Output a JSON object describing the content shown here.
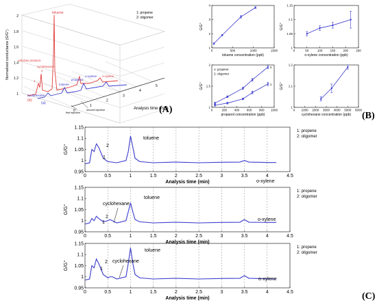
{
  "panel_labels": {
    "a": "(A)",
    "b": "(B)",
    "c": "(C)"
  },
  "colors": {
    "blue": "#3a3acd",
    "red": "#e03a3a",
    "grid": "#c8c8c8",
    "axis": "#000000",
    "dash": "#888888"
  },
  "panel_a": {
    "ylabel": "Normalized conductance (G/G°)",
    "xlabel": "Analysis time (min)",
    "legend": [
      "1: propene",
      "2: oligomer"
    ],
    "yticks": [
      "1",
      "1.2",
      "1.4",
      "1.6",
      "1.8",
      "2"
    ],
    "xticks": [
      "0",
      "1",
      "2",
      "3",
      "4",
      "5"
    ],
    "injection_labels": [
      "first injection",
      "second injection"
    ],
    "trace_labels": {
      "b": "(b)",
      "a": "(a)"
    },
    "red_annotations": [
      "toluene",
      "cellulose products",
      "cyclohexene",
      "o-xylene"
    ],
    "blue_annotations": [
      "cyclohexane",
      "toluene",
      "propanol",
      "o-xylene"
    ],
    "peak_numbers": [
      "1",
      "2"
    ]
  },
  "chart_data": [
    {
      "type": "line",
      "title": "",
      "xlabel": "toluene concentration (ppb)",
      "ylabel": "G/G°",
      "xlim": [
        0,
        1500
      ],
      "ylim": [
        1,
        4
      ],
      "xticks": [
        "0",
        "500",
        "1000",
        "1500"
      ],
      "yticks": [
        "1",
        "2",
        "3",
        "4"
      ],
      "x": [
        50,
        250,
        700,
        1050
      ],
      "y": [
        1.3,
        1.9,
        3.2,
        3.85
      ],
      "err": [
        0.05,
        0.05,
        0.08,
        0.06
      ]
    },
    {
      "type": "line",
      "title": "",
      "xlabel": "o-xylene concentration (ppb)",
      "ylabel": "G/G°",
      "xlim": [
        0,
        250
      ],
      "ylim": [
        1,
        1.15
      ],
      "xticks": [
        "0",
        "50",
        "100",
        "150",
        "200",
        "250"
      ],
      "yticks": [
        "1",
        "1.05",
        "1.1",
        "1.15"
      ],
      "x": [
        50,
        100,
        150,
        220
      ],
      "y": [
        1.05,
        1.07,
        1.08,
        1.1
      ],
      "err": [
        0.008,
        0.008,
        0.01,
        0.03
      ]
    },
    {
      "type": "line",
      "title": "",
      "xlabel": "propanol concentration (ppb)",
      "ylabel": "G/G°",
      "xlim": [
        0,
        1000
      ],
      "ylim": [
        1,
        2
      ],
      "xticks": [
        "0",
        "200",
        "400",
        "600",
        "800",
        "1000"
      ],
      "yticks": [
        "1",
        "1.5",
        "2"
      ],
      "legend": [
        "1: propene",
        "2: oligomer"
      ],
      "series": [
        {
          "name": "2",
          "x": [
            50,
            250,
            500,
            650,
            900
          ],
          "y": [
            1.1,
            1.25,
            1.45,
            1.65,
            1.95
          ],
          "err": [
            0.02,
            0.02,
            0.03,
            0.03,
            0.04
          ]
        },
        {
          "name": "1",
          "x": [
            50,
            250,
            500,
            650,
            900
          ],
          "y": [
            1.05,
            1.1,
            1.2,
            1.35,
            1.55
          ],
          "err": [
            0.02,
            0.02,
            0.02,
            0.03,
            0.04
          ]
        }
      ]
    },
    {
      "type": "line",
      "title": "",
      "xlabel": "cyclohexane concentration (ppb)",
      "ylabel": "G/G°",
      "xlim": [
        0,
        6000
      ],
      "ylim": [
        1,
        1.2
      ],
      "xticks": [
        "0",
        "1000",
        "2000",
        "3000",
        "4000",
        "5000",
        "6000"
      ],
      "yticks": [
        "1",
        "1.1",
        "1.2"
      ],
      "x": [
        2500,
        3500,
        5000
      ],
      "y": [
        1.04,
        1.09,
        1.19
      ],
      "err": [
        0.01,
        0.02,
        0.01
      ]
    },
    {
      "type": "line",
      "title": "",
      "xlabel": "Analysis time (min)",
      "ylabel": "G/G°",
      "xlim": [
        0,
        4.5
      ],
      "ylim": [
        0.95,
        1.15
      ],
      "xticks": [
        "0",
        "0.5",
        "1",
        "1.5",
        "2",
        "2.5",
        "3",
        "3.5",
        "4",
        "4.5"
      ],
      "yticks": [
        "0.95",
        "1",
        "1.05",
        "1.1",
        "1.15"
      ],
      "legend": [
        "1: propene",
        "2: oligomer"
      ],
      "annotations": [
        "1",
        "2",
        "toluene",
        "o-xylene"
      ],
      "x": [
        0,
        0.1,
        0.15,
        0.2,
        0.25,
        0.3,
        0.4,
        0.5,
        0.7,
        0.9,
        0.95,
        1.0,
        1.05,
        1.1,
        1.2,
        1.5,
        2,
        2.5,
        3,
        3.4,
        3.5,
        3.6,
        4,
        4.2
      ],
      "y": [
        0.985,
        0.99,
        1.05,
        1.04,
        1.075,
        1.06,
        1.01,
        0.995,
        0.99,
        1.0,
        1.04,
        1.11,
        1.06,
        1.01,
        0.995,
        0.99,
        0.993,
        0.99,
        0.992,
        0.993,
        1.0,
        0.993,
        0.991,
        0.991
      ]
    },
    {
      "type": "line",
      "title": "",
      "xlabel": "Analysis time (min)",
      "ylabel": "G/G°",
      "xlim": [
        0,
        4.5
      ],
      "ylim": [
        0.95,
        1.15
      ],
      "xticks": [
        "0",
        "0.5",
        "1",
        "1.5",
        "2",
        "2.5",
        "3",
        "3.5",
        "4",
        "4.5"
      ],
      "yticks": [
        "0.95",
        "1",
        "1.05",
        "1.1",
        "1.15"
      ],
      "legend": [
        "1: propene",
        "2: oligomer"
      ],
      "annotations": [
        "1",
        "2",
        "cyclohexane",
        "toluene",
        "o-xylene"
      ],
      "x": [
        0,
        0.1,
        0.15,
        0.2,
        0.25,
        0.3,
        0.4,
        0.5,
        0.55,
        0.6,
        0.7,
        0.9,
        0.95,
        1.0,
        1.05,
        1.1,
        1.2,
        1.5,
        2,
        2.5,
        3,
        3.4,
        3.5,
        3.6,
        4,
        4.2
      ],
      "y": [
        0.985,
        0.99,
        1.01,
        1.0,
        1.02,
        1.01,
        0.995,
        1.0,
        1.005,
        1.0,
        0.99,
        1.0,
        1.04,
        1.08,
        1.04,
        1.005,
        0.995,
        0.99,
        0.993,
        0.99,
        0.992,
        0.993,
        1.005,
        0.993,
        0.992,
        0.992
      ]
    },
    {
      "type": "line",
      "title": "",
      "xlabel": "Analysis time (min)",
      "ylabel": "G/G°",
      "xlim": [
        0,
        4.5
      ],
      "ylim": [
        0.95,
        1.15
      ],
      "xticks": [
        "0",
        "0.5",
        "1",
        "1.5",
        "2",
        "2.5",
        "3",
        "3.5",
        "4",
        "4.5"
      ],
      "yticks": [
        "0.95",
        "1",
        "1.05",
        "1.1",
        "1.15"
      ],
      "legend": [
        "1: propene",
        "2: oligomer"
      ],
      "annotations": [
        "1",
        "2",
        "cyclohexane",
        "toluene",
        "o-xylene"
      ],
      "x": [
        0,
        0.1,
        0.15,
        0.2,
        0.25,
        0.3,
        0.4,
        0.5,
        0.55,
        0.6,
        0.7,
        0.9,
        0.95,
        1.0,
        1.05,
        1.1,
        1.2,
        1.5,
        2,
        2.5,
        3,
        3.4,
        3.5,
        3.6,
        4,
        4.2
      ],
      "y": [
        0.985,
        0.99,
        1.05,
        1.04,
        1.08,
        1.06,
        1.01,
        0.995,
        1.0,
        1.0,
        0.99,
        1.0,
        1.06,
        1.13,
        1.06,
        1.01,
        0.995,
        0.99,
        0.993,
        0.99,
        0.992,
        0.993,
        1.005,
        0.993,
        0.991,
        0.99
      ]
    }
  ]
}
